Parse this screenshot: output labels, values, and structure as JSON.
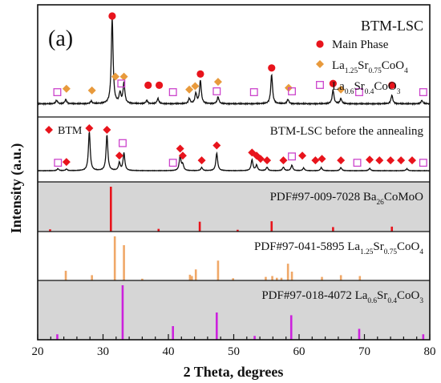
{
  "panel_label": "(a)",
  "chart_data": {
    "type": "line",
    "xlabel": "2 Theta, degrees",
    "ylabel": "Intensity (a.u.)",
    "xlim": [
      20,
      80
    ],
    "xticks": [
      20,
      30,
      40,
      50,
      60,
      70,
      80
    ],
    "grid": false,
    "panels": [
      {
        "id": "after",
        "kind": "pattern",
        "title": "BTM-LSC",
        "baseline": 0.06,
        "peaks": [
          {
            "x": 22.9,
            "h": 0.04
          },
          {
            "x": 24.3,
            "h": 0.05
          },
          {
            "x": 28.2,
            "h": 0.03
          },
          {
            "x": 31.4,
            "h": 1.0
          },
          {
            "x": 32.6,
            "h": 0.12
          },
          {
            "x": 33.2,
            "h": 0.24
          },
          {
            "x": 36.7,
            "h": 0.04
          },
          {
            "x": 38.4,
            "h": 0.06
          },
          {
            "x": 43.2,
            "h": 0.06
          },
          {
            "x": 44.2,
            "h": 0.12
          },
          {
            "x": 44.9,
            "h": 0.27
          },
          {
            "x": 47.6,
            "h": 0.08
          },
          {
            "x": 55.8,
            "h": 0.34
          },
          {
            "x": 58.3,
            "h": 0.05
          },
          {
            "x": 65.2,
            "h": 0.16
          },
          {
            "x": 66.4,
            "h": 0.06
          },
          {
            "x": 74.2,
            "h": 0.1
          },
          {
            "x": 78.8,
            "h": 0.04
          }
        ],
        "markers": [
          {
            "x": 31.4,
            "y": 1.0,
            "sym": "circle"
          },
          {
            "x": 36.9,
            "y": 0.2,
            "sym": "circle"
          },
          {
            "x": 38.6,
            "y": 0.2,
            "sym": "circle"
          },
          {
            "x": 44.9,
            "y": 0.33,
            "sym": "circle"
          },
          {
            "x": 55.8,
            "y": 0.4,
            "sym": "circle"
          },
          {
            "x": 65.2,
            "y": 0.22,
            "sym": "circle"
          },
          {
            "x": 74.2,
            "y": 0.2,
            "sym": "circle"
          },
          {
            "x": 24.4,
            "y": 0.16,
            "sym": "diamond"
          },
          {
            "x": 28.3,
            "y": 0.14,
            "sym": "diamond"
          },
          {
            "x": 31.9,
            "y": 0.3,
            "sym": "diamond"
          },
          {
            "x": 33.2,
            "y": 0.3,
            "sym": "diamond"
          },
          {
            "x": 43.2,
            "y": 0.15,
            "sym": "diamond"
          },
          {
            "x": 44.1,
            "y": 0.19,
            "sym": "diamond"
          },
          {
            "x": 47.6,
            "y": 0.24,
            "sym": "diamond"
          },
          {
            "x": 58.4,
            "y": 0.17,
            "sym": "diamond"
          },
          {
            "x": 66.4,
            "y": 0.15,
            "sym": "diamond"
          },
          {
            "x": 23.0,
            "y": 0.12,
            "sym": "square"
          },
          {
            "x": 32.8,
            "y": 0.22,
            "sym": "square"
          },
          {
            "x": 40.7,
            "y": 0.12,
            "sym": "square"
          },
          {
            "x": 47.4,
            "y": 0.13,
            "sym": "square"
          },
          {
            "x": 53.1,
            "y": 0.12,
            "sym": "square"
          },
          {
            "x": 58.9,
            "y": 0.13,
            "sym": "square"
          },
          {
            "x": 69.2,
            "y": 0.12,
            "sym": "square"
          },
          {
            "x": 79.0,
            "y": 0.12,
            "sym": "square"
          }
        ],
        "legend": [
          {
            "sym": "circle",
            "label": "Main Phase"
          },
          {
            "sym": "diamond",
            "label_main": "La",
            "sub1": "1.25",
            "mid": "Sr",
            "sub2": "0.75",
            "tail": "CoO",
            "sub3": "4"
          },
          {
            "sym": "square",
            "label_main": "La",
            "sub1": "0.6",
            "mid": "Sr",
            "sub2": "0.4",
            "tail": "CoO",
            "sub3": "3"
          }
        ]
      },
      {
        "id": "before",
        "kind": "pattern",
        "title": "BTM-LSC before the annealing",
        "legend_label": "BTM",
        "baseline": 0.08,
        "peaks": [
          {
            "x": 23.1,
            "h": 0.05
          },
          {
            "x": 24.4,
            "h": 0.04
          },
          {
            "x": 27.9,
            "h": 1.0
          },
          {
            "x": 30.6,
            "h": 0.92
          },
          {
            "x": 32.5,
            "h": 0.2
          },
          {
            "x": 33.2,
            "h": 0.45
          },
          {
            "x": 41.8,
            "h": 0.38
          },
          {
            "x": 42.2,
            "h": 0.15
          },
          {
            "x": 45.1,
            "h": 0.08
          },
          {
            "x": 47.4,
            "h": 0.45
          },
          {
            "x": 52.8,
            "h": 0.28
          },
          {
            "x": 53.5,
            "h": 0.14
          },
          {
            "x": 55.1,
            "h": 0.09
          },
          {
            "x": 57.6,
            "h": 0.09
          },
          {
            "x": 58.9,
            "h": 0.14
          },
          {
            "x": 60.7,
            "h": 0.07
          },
          {
            "x": 63.4,
            "h": 0.08
          },
          {
            "x": 66.4,
            "h": 0.08
          },
          {
            "x": 70.8,
            "h": 0.06
          },
          {
            "x": 76.5,
            "h": 0.05
          }
        ],
        "markers": [
          {
            "x": 24.4,
            "y": 0.14,
            "sym": "diamond"
          },
          {
            "x": 27.9,
            "y": 1.0,
            "sym": "diamond"
          },
          {
            "x": 30.6,
            "y": 0.96,
            "sym": "diamond"
          },
          {
            "x": 32.5,
            "y": 0.3,
            "sym": "diamond"
          },
          {
            "x": 41.8,
            "y": 0.48,
            "sym": "diamond"
          },
          {
            "x": 42.2,
            "y": 0.3,
            "sym": "diamond"
          },
          {
            "x": 45.1,
            "y": 0.18,
            "sym": "diamond"
          },
          {
            "x": 47.4,
            "y": 0.56,
            "sym": "diamond"
          },
          {
            "x": 52.8,
            "y": 0.38,
            "sym": "diamond"
          },
          {
            "x": 53.5,
            "y": 0.3,
            "sym": "diamond"
          },
          {
            "x": 54.1,
            "y": 0.22,
            "sym": "diamond"
          },
          {
            "x": 55.1,
            "y": 0.18,
            "sym": "diamond"
          },
          {
            "x": 57.6,
            "y": 0.18,
            "sym": "diamond"
          },
          {
            "x": 60.5,
            "y": 0.3,
            "sym": "diamond"
          },
          {
            "x": 62.5,
            "y": 0.18,
            "sym": "diamond"
          },
          {
            "x": 63.5,
            "y": 0.22,
            "sym": "diamond"
          },
          {
            "x": 66.4,
            "y": 0.18,
            "sym": "diamond"
          },
          {
            "x": 70.8,
            "y": 0.2,
            "sym": "diamond"
          },
          {
            "x": 72.3,
            "y": 0.18,
            "sym": "diamond"
          },
          {
            "x": 74.0,
            "y": 0.18,
            "sym": "diamond"
          },
          {
            "x": 75.6,
            "y": 0.18,
            "sym": "diamond"
          },
          {
            "x": 77.3,
            "y": 0.18,
            "sym": "diamond"
          },
          {
            "x": 23.1,
            "y": 0.12,
            "sym": "square"
          },
          {
            "x": 33.0,
            "y": 0.62,
            "sym": "square"
          },
          {
            "x": 40.7,
            "y": 0.12,
            "sym": "square"
          },
          {
            "x": 58.9,
            "y": 0.28,
            "sym": "square"
          },
          {
            "x": 68.9,
            "y": 0.12,
            "sym": "square"
          },
          {
            "x": 79.0,
            "y": 0.12,
            "sym": "square"
          }
        ]
      },
      {
        "id": "ref1",
        "kind": "reference",
        "shaded": true,
        "color": "#e8141c",
        "label_main": "PDF#97-009-7028 Ba",
        "sub1": "2",
        "tail": "CoMoO",
        "sub2": "6",
        "sticks": [
          {
            "x": 21.9,
            "h": 0.05
          },
          {
            "x": 31.2,
            "h": 1.0
          },
          {
            "x": 38.5,
            "h": 0.06
          },
          {
            "x": 44.8,
            "h": 0.22
          },
          {
            "x": 50.6,
            "h": 0.04
          },
          {
            "x": 55.8,
            "h": 0.23
          },
          {
            "x": 65.2,
            "h": 0.1
          },
          {
            "x": 74.2,
            "h": 0.11
          }
        ]
      },
      {
        "id": "ref2",
        "kind": "reference",
        "shaded": false,
        "color": "#f0a868",
        "label_main": "PDF#97-041-5895 La",
        "sub1": "1.25",
        "mid": "Sr",
        "sub2": "0.75",
        "tail": "CoO",
        "sub3": "4",
        "sticks": [
          {
            "x": 24.3,
            "h": 0.22
          },
          {
            "x": 28.3,
            "h": 0.12
          },
          {
            "x": 31.8,
            "h": 1.0
          },
          {
            "x": 33.2,
            "h": 0.8
          },
          {
            "x": 36.0,
            "h": 0.04
          },
          {
            "x": 43.3,
            "h": 0.13
          },
          {
            "x": 43.6,
            "h": 0.1
          },
          {
            "x": 44.2,
            "h": 0.25
          },
          {
            "x": 47.6,
            "h": 0.45
          },
          {
            "x": 49.9,
            "h": 0.05
          },
          {
            "x": 54.9,
            "h": 0.08
          },
          {
            "x": 55.9,
            "h": 0.1
          },
          {
            "x": 56.6,
            "h": 0.06
          },
          {
            "x": 57.3,
            "h": 0.06
          },
          {
            "x": 58.3,
            "h": 0.38
          },
          {
            "x": 58.9,
            "h": 0.2
          },
          {
            "x": 63.5,
            "h": 0.08
          },
          {
            "x": 66.4,
            "h": 0.12
          },
          {
            "x": 69.3,
            "h": 0.1
          }
        ]
      },
      {
        "id": "ref3",
        "kind": "reference",
        "shaded": true,
        "color": "#cc22dd",
        "label_main": "PDF#97-018-4072 La",
        "sub1": "0.6",
        "mid": "Sr",
        "sub2": "0.4",
        "tail": "CoO",
        "sub3": "3",
        "sticks": [
          {
            "x": 23.0,
            "h": 0.1
          },
          {
            "x": 33.0,
            "h": 1.0
          },
          {
            "x": 40.7,
            "h": 0.25
          },
          {
            "x": 47.4,
            "h": 0.5
          },
          {
            "x": 53.2,
            "h": 0.07
          },
          {
            "x": 58.8,
            "h": 0.45
          },
          {
            "x": 69.2,
            "h": 0.2
          },
          {
            "x": 79.0,
            "h": 0.1
          }
        ]
      }
    ]
  },
  "colors": {
    "line": "#111111",
    "circle": "#e8141c",
    "diamond_after": "#e89a3c",
    "diamond_before": "#e8141c",
    "square": "#cc44cc",
    "shade": "#d6d6d6"
  }
}
